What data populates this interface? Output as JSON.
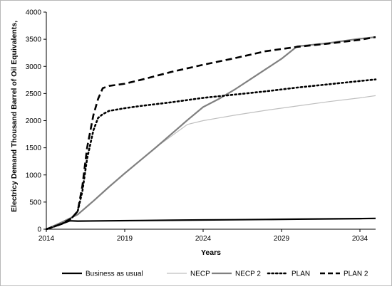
{
  "chart_data": {
    "type": "line",
    "xlabel": "Years",
    "ylabel": "Electricy Demand Thousand Barrel of Oil Equivalents,",
    "xlim": [
      2014,
      2035
    ],
    "ylim": [
      0,
      4000
    ],
    "x_ticks": [
      "2014",
      "2019",
      "2024",
      "2029",
      "2034"
    ],
    "y_ticks": [
      "0",
      "500",
      "1000",
      "1500",
      "2000",
      "2500",
      "3000",
      "3500",
      "4000"
    ],
    "grid": false,
    "legend_position": "bottom",
    "series": [
      {
        "name": "Business as usual",
        "color": "#000000",
        "style": "solid",
        "width": 2.2,
        "x": [
          2014,
          2015,
          2015.5,
          2016,
          2018,
          2020,
          2022,
          2024,
          2026,
          2028,
          2030,
          2032,
          2034,
          2035
        ],
        "y": [
          0,
          100,
          155,
          150,
          155,
          160,
          165,
          170,
          175,
          180,
          185,
          190,
          195,
          200
        ]
      },
      {
        "name": "NECP",
        "color": "#bfbfbf",
        "style": "solid",
        "width": 1.2,
        "x": [
          2014,
          2015,
          2016,
          2017,
          2018,
          2019,
          2020,
          2021,
          2022,
          2023,
          2024,
          2025,
          2026,
          2028,
          2030,
          2032,
          2034,
          2035
        ],
        "y": [
          0,
          130,
          270,
          520,
          780,
          1030,
          1270,
          1510,
          1720,
          1930,
          2000,
          2050,
          2100,
          2190,
          2270,
          2350,
          2420,
          2460
        ]
      },
      {
        "name": "NECP 2",
        "color": "#808080",
        "style": "solid",
        "width": 2.2,
        "x": [
          2014,
          2015,
          2016,
          2017,
          2018,
          2019,
          2020,
          2021,
          2022,
          2023,
          2024,
          2025,
          2026,
          2027,
          2028,
          2029,
          2030,
          2031,
          2032,
          2033,
          2034,
          2035
        ],
        "y": [
          0,
          130,
          270,
          520,
          780,
          1030,
          1270,
          1510,
          1760,
          2010,
          2250,
          2400,
          2570,
          2760,
          2950,
          3140,
          3370,
          3400,
          3430,
          3470,
          3510,
          3540
        ]
      },
      {
        "name": "PLAN",
        "color": "#000000",
        "style": "dotted",
        "width": 2.6,
        "x": [
          2014,
          2015,
          2015.6,
          2016,
          2016.3,
          2016.6,
          2017,
          2017.3,
          2017.6,
          2018,
          2019,
          2020,
          2022,
          2024,
          2026,
          2028,
          2030,
          2032,
          2034,
          2035
        ],
        "y": [
          0,
          100,
          200,
          330,
          700,
          1300,
          1820,
          2050,
          2120,
          2180,
          2230,
          2270,
          2340,
          2420,
          2480,
          2540,
          2610,
          2670,
          2730,
          2760
        ]
      },
      {
        "name": "PLAN 2",
        "color": "#000000",
        "style": "dashed",
        "width": 2.6,
        "x": [
          2014,
          2015,
          2015.6,
          2016,
          2016.3,
          2016.6,
          2017,
          2017.3,
          2017.6,
          2018,
          2019,
          2020,
          2022,
          2024,
          2026,
          2028,
          2030,
          2032,
          2034,
          2035
        ],
        "y": [
          0,
          100,
          200,
          330,
          800,
          1500,
          2100,
          2400,
          2600,
          2640,
          2680,
          2750,
          2900,
          3030,
          3150,
          3280,
          3360,
          3420,
          3490,
          3540
        ]
      }
    ]
  }
}
